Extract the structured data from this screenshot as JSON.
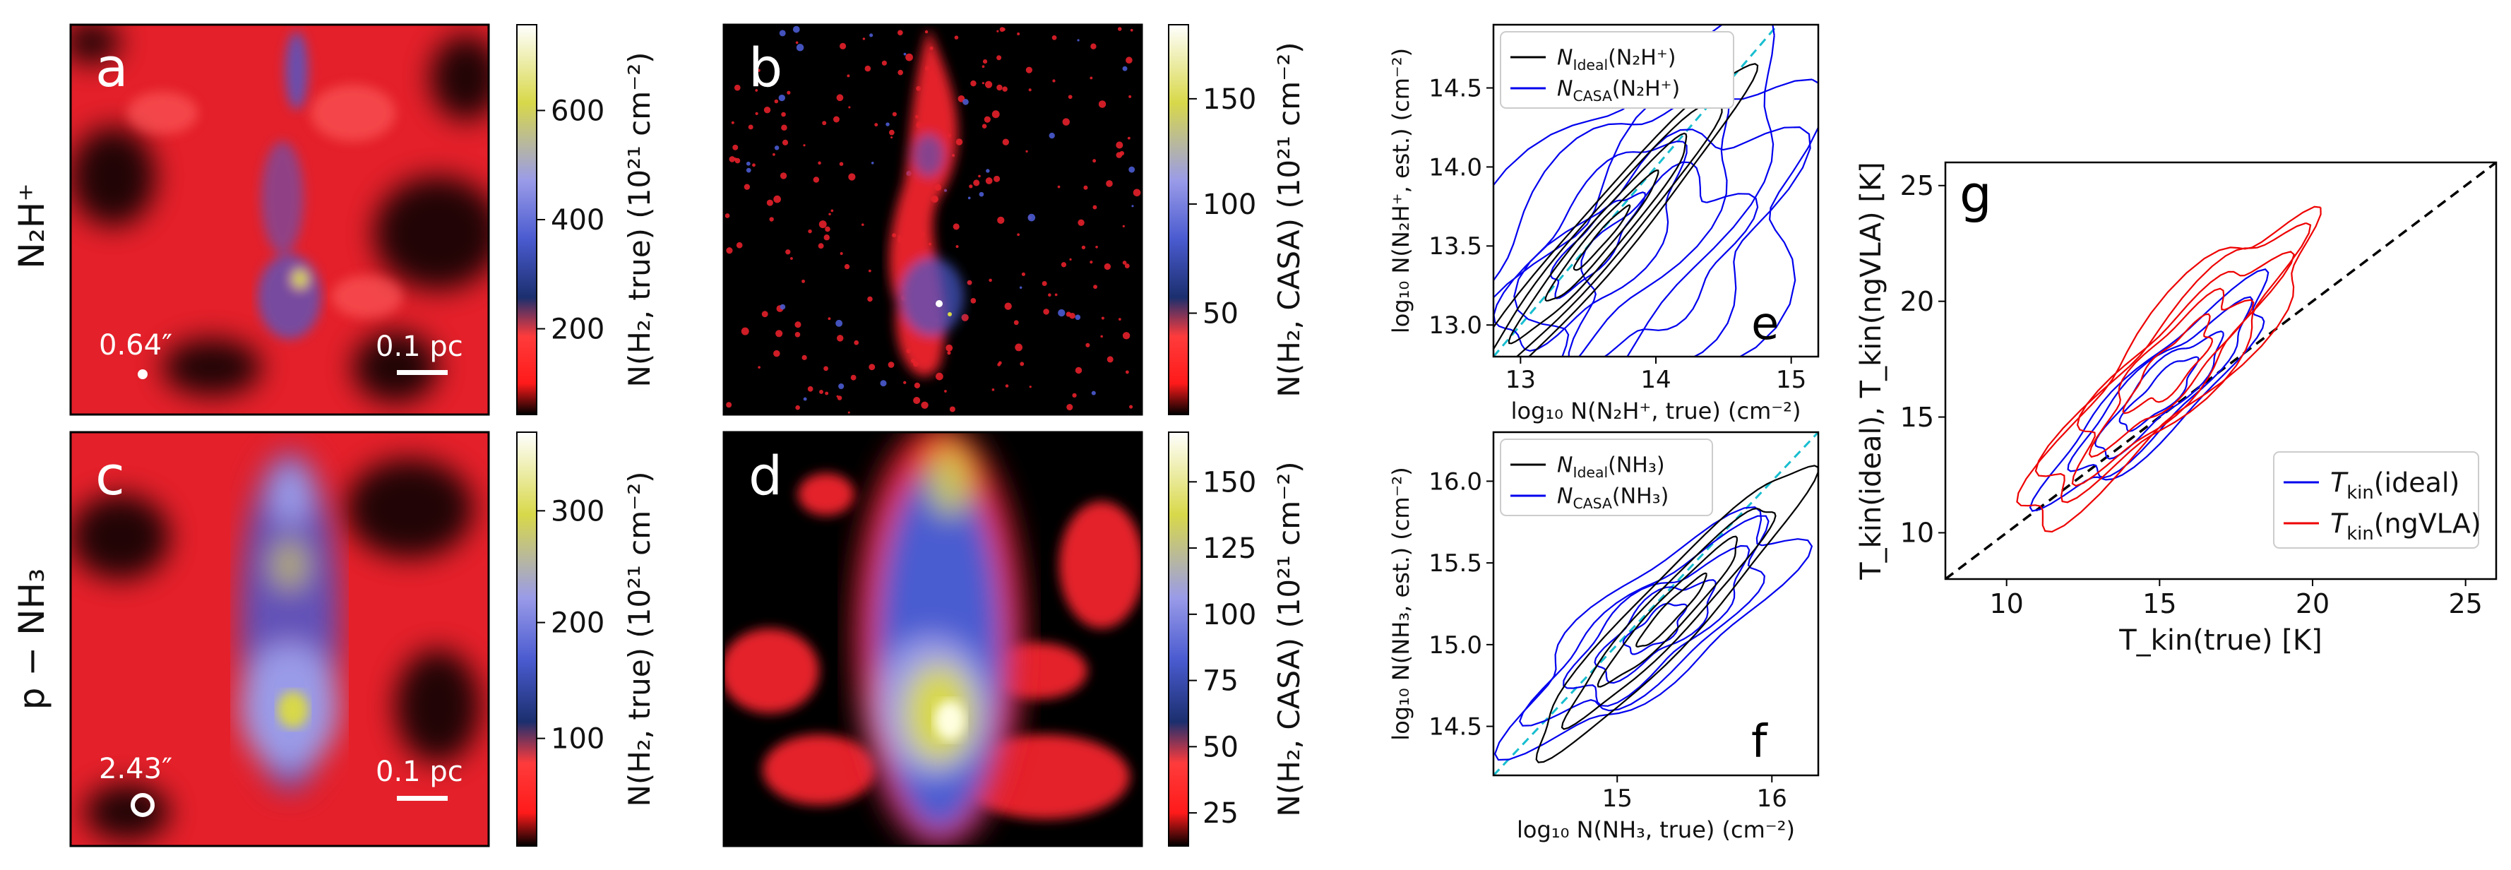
{
  "row_labels": {
    "top": "N₂H⁺",
    "bottom": "p − NH₃"
  },
  "panels": {
    "a": {
      "letter": "a",
      "beam_label": "0.64″",
      "scalebar_label": "0.1 pc",
      "colorbar_ticks": [
        "200",
        "400",
        "600"
      ],
      "colorbar_label": "N(H₂, true) (10²¹ cm⁻²)"
    },
    "b": {
      "letter": "b",
      "colorbar_ticks": [
        "50",
        "100",
        "150"
      ],
      "colorbar_label": "N(H₂, CASA) (10²¹ cm⁻²)"
    },
    "c": {
      "letter": "c",
      "beam_label": "2.43″",
      "scalebar_label": "0.1 pc",
      "colorbar_ticks": [
        "100",
        "200",
        "300"
      ],
      "colorbar_label": "N(H₂, true) (10²¹ cm⁻²)"
    },
    "d": {
      "letter": "d",
      "colorbar_ticks": [
        "25",
        "50",
        "75",
        "100",
        "125",
        "150"
      ],
      "colorbar_label": "N(H₂, CASA) (10²¹ cm⁻²)"
    }
  },
  "colorbar_colors": [
    "#000000",
    "#ff1a1a",
    "#ff3b3b",
    "#1b2f6e",
    "#4a5bd0",
    "#9a9be8",
    "#d8d84a",
    "#ffffff"
  ],
  "chart_data": [
    {
      "panel": "e",
      "type": "line",
      "xlabel": "log₁₀ N(N₂H⁺, true) (cm⁻²)",
      "ylabel": "log₁₀ N(N₂H⁺, est.) (cm⁻²)",
      "xlim": [
        12.8,
        15.2
      ],
      "ylim": [
        12.8,
        14.9
      ],
      "xticks": [
        13,
        14,
        15
      ],
      "yticks": [
        13.0,
        13.5,
        14.0,
        14.5
      ],
      "series": [
        {
          "name": "N_Ideal(N₂H⁺)",
          "color": "#000000"
        },
        {
          "name": "N_CASA(N₂H⁺)",
          "color": "#0000ee"
        }
      ],
      "reference_line": "y = x",
      "legend": "top-left"
    },
    {
      "panel": "f",
      "type": "line",
      "xlabel": "log₁₀ N(NH₃, true) (cm⁻²)",
      "ylabel": "log₁₀ N(NH₃, est.) (cm⁻²)",
      "xlim": [
        14.2,
        16.3
      ],
      "ylim": [
        14.2,
        16.3
      ],
      "xticks": [
        15,
        16
      ],
      "yticks": [
        14.5,
        15.0,
        15.5,
        16.0
      ],
      "series": [
        {
          "name": "N_Ideal(NH₃)",
          "color": "#000000"
        },
        {
          "name": "N_CASA(NH₃)",
          "color": "#0000ee"
        }
      ],
      "reference_line": "y = x",
      "legend": "top-left"
    },
    {
      "panel": "g",
      "type": "line",
      "xlabel": "T_kin(true) [K]",
      "ylabel": "T_kin(ideal), T_kin(ngVLA) [K]",
      "xlim": [
        8,
        26
      ],
      "ylim": [
        8,
        26
      ],
      "xticks": [
        10,
        15,
        20,
        25
      ],
      "yticks": [
        10,
        15,
        20,
        25
      ],
      "series": [
        {
          "name": "T_kin(ideal)",
          "color": "#0000ee"
        },
        {
          "name": "T_kin(ngVLA)",
          "color": "#ee0000"
        }
      ],
      "reference_line": "y = x",
      "legend": "bottom-right"
    }
  ]
}
